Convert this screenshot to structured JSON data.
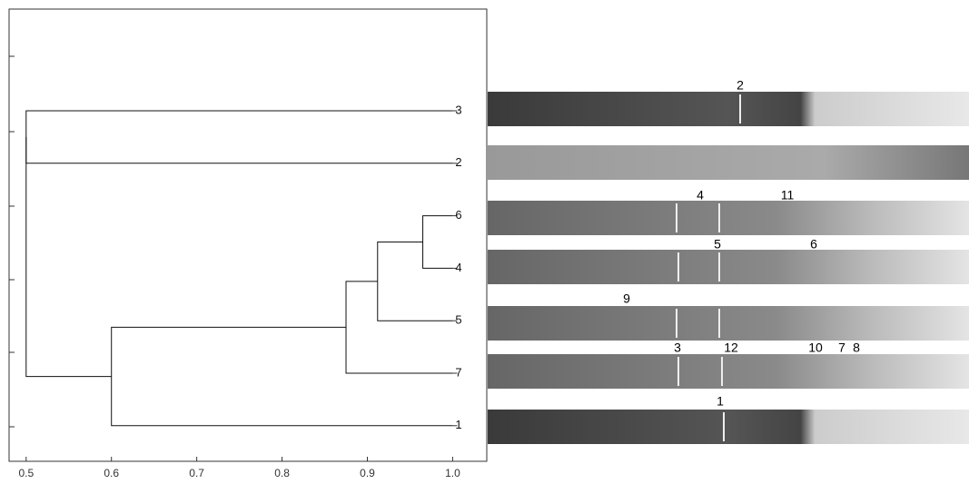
{
  "chart_data": {
    "type": "dendrogram",
    "leaves": [
      "3",
      "2",
      "6",
      "4",
      "5",
      "7",
      "1"
    ],
    "merges": [
      {
        "a": 2,
        "b": 3,
        "height": 0.965
      },
      {
        "a": 7,
        "b": 4,
        "height": 0.912
      },
      {
        "a": 8,
        "b": 5,
        "height": 0.875
      },
      {
        "a": 9,
        "b": 6,
        "height": 0.6
      },
      {
        "a": 0,
        "b": 1,
        "height": 0.5
      },
      {
        "a": 11,
        "b": 10,
        "height": 0.5
      }
    ],
    "leaf_height": 1,
    "xlim": [
      0.48,
      1.04
    ],
    "xticks": [
      0.5,
      0.6,
      0.7,
      0.8,
      0.9,
      {
        "value": 1,
        "label": "1.0"
      }
    ]
  },
  "gel": {
    "band_labels": [
      "2",
      "4",
      "11",
      "5",
      "6",
      "9",
      "3",
      "12",
      "10",
      "7",
      "8",
      "1"
    ]
  }
}
